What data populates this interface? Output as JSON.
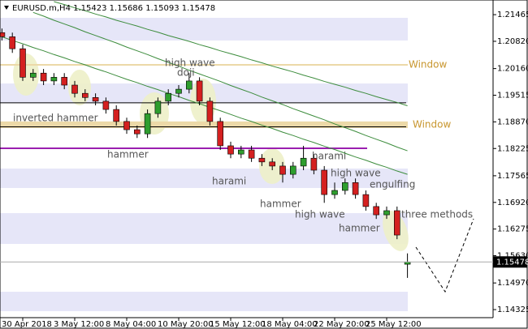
{
  "chart_data": {
    "type": "candlestick",
    "symbol": "EURUSD.m,H4",
    "categories": [
      null,
      null,
      "30 Apr 2018",
      null,
      null,
      null,
      null,
      "3 May 12:00",
      null,
      null,
      null,
      null,
      "8 May 04:00",
      null,
      null,
      null,
      null,
      "10 May 20:00",
      null,
      null,
      null,
      null,
      "15 May 12:00",
      null,
      null,
      null,
      null,
      "18 May 04:00",
      null,
      null,
      null,
      null,
      "22 May 20:00",
      null,
      null,
      null,
      null,
      "25 May 12:00",
      null,
      null
    ],
    "open": [
      1.2103,
      1.2093,
      1.2064,
      1.1995,
      1.2005,
      1.1986,
      1.1995,
      1.1976,
      1.1956,
      1.1946,
      1.1937,
      1.1917,
      1.1888,
      1.1868,
      1.1858,
      1.1907,
      1.1937,
      1.1956,
      1.1966,
      1.1986,
      1.1937,
      1.1888,
      1.1829,
      1.1809,
      1.1819,
      1.1799,
      1.179,
      1.178,
      1.176,
      1.178,
      1.1799,
      1.177,
      1.1711,
      1.1721,
      1.174,
      1.1711,
      1.1682,
      1.1662,
      1.1672,
      1.15423
    ],
    "high": [
      1.2113,
      1.2103,
      1.2074,
      1.2015,
      1.2015,
      1.2005,
      1.2005,
      1.1986,
      1.1966,
      1.1956,
      1.1946,
      1.1927,
      1.1897,
      1.1878,
      1.1917,
      1.1946,
      1.1966,
      1.1976,
      1.2005,
      1.1995,
      1.1946,
      1.1897,
      1.1839,
      1.1829,
      1.1829,
      1.1809,
      1.1799,
      1.179,
      1.179,
      1.1829,
      1.1809,
      1.178,
      1.174,
      1.175,
      1.175,
      1.1721,
      1.1691,
      1.1682,
      1.1682,
      1.15686
    ],
    "low": [
      1.2084,
      1.2054,
      1.1986,
      1.1986,
      1.1976,
      1.1976,
      1.1966,
      1.1946,
      1.1937,
      1.1927,
      1.1907,
      1.1878,
      1.1858,
      1.1848,
      1.1848,
      1.1897,
      1.1927,
      1.1946,
      1.1956,
      1.1927,
      1.1878,
      1.1819,
      1.1799,
      1.1799,
      1.179,
      1.178,
      1.177,
      1.174,
      1.175,
      1.177,
      1.176,
      1.1691,
      1.1701,
      1.1711,
      1.1701,
      1.1672,
      1.1652,
      1.1652,
      1.1603,
      1.15093
    ],
    "close": [
      1.2093,
      1.2064,
      1.1995,
      1.2005,
      1.1986,
      1.1995,
      1.1976,
      1.1956,
      1.1946,
      1.1937,
      1.1917,
      1.1888,
      1.1868,
      1.1858,
      1.1907,
      1.1937,
      1.1956,
      1.1966,
      1.1986,
      1.1937,
      1.1888,
      1.1829,
      1.1809,
      1.1819,
      1.1799,
      1.179,
      1.178,
      1.176,
      1.178,
      1.1799,
      1.177,
      1.1711,
      1.1721,
      1.174,
      1.1711,
      1.1682,
      1.1662,
      1.1672,
      1.1613,
      1.15478
    ],
    "up_color": "#2e9e2e",
    "down_color": "#d42020",
    "ma": [
      {
        "color": "#3c8c3c",
        "values": [
          null,
          null,
          null,
          null,
          null,
          1.2178,
          1.2171,
          1.2163,
          1.2156,
          1.2148,
          1.2141,
          1.2133,
          1.2126,
          1.2119,
          1.2111,
          1.2104,
          1.2096,
          1.2089,
          1.2082,
          1.2074,
          1.2067,
          1.2059,
          1.2052,
          1.2045,
          1.2037,
          1.203,
          1.2022,
          1.2015,
          1.2008,
          1.2,
          1.1993,
          1.1985,
          1.1978,
          1.1971,
          1.1963,
          1.1956,
          1.1948,
          1.1941,
          1.1934,
          1.1926
        ]
      },
      {
        "color": "#3c8c3c",
        "values": [
          null,
          null,
          null,
          1.2152,
          1.2143,
          1.2133,
          1.2124,
          1.2115,
          1.2105,
          1.2096,
          1.2087,
          1.2078,
          1.2068,
          1.2059,
          1.205,
          1.204,
          1.2031,
          1.2022,
          1.2012,
          1.2003,
          1.1994,
          1.1985,
          1.1975,
          1.1966,
          1.1957,
          1.1947,
          1.1938,
          1.1929,
          1.1919,
          1.191,
          1.1901,
          1.1892,
          1.1882,
          1.1873,
          1.1864,
          1.1854,
          1.1845,
          1.1836,
          1.1826,
          1.1817
        ]
      },
      {
        "color": "#3c8c3c",
        "values": [
          1.2093,
          1.2084,
          1.2076,
          1.2067,
          1.2059,
          1.205,
          1.2042,
          1.2033,
          1.2025,
          1.2016,
          1.2008,
          1.1999,
          1.199,
          1.1982,
          1.1973,
          1.1965,
          1.1956,
          1.1948,
          1.1939,
          1.1931,
          1.1922,
          1.1914,
          1.1905,
          1.1896,
          1.1888,
          1.1879,
          1.1871,
          1.1862,
          1.1854,
          1.1845,
          1.1837,
          1.1828,
          1.182,
          1.1811,
          1.1802,
          1.1794,
          1.1785,
          1.1777,
          1.1768,
          1.176
        ]
      }
    ],
    "levels": [
      {
        "value": 1.1933,
        "color": "#000000"
      },
      {
        "value": 1.1875,
        "color": "#000000"
      },
      {
        "value": 1.1823,
        "color": "#9a1fb0"
      }
    ],
    "zones": [
      {
        "from": 1.2023,
        "to": 1.2027,
        "label": "Window"
      },
      {
        "from": 1.1872,
        "to": 1.1888,
        "label": "Window"
      }
    ],
    "zone_color": "#ecd9a8",
    "annotations": [
      "high wave",
      "doji",
      "inverted hammer",
      "hammer",
      "harami",
      "hammer",
      "harami",
      "high wave",
      "engulfing",
      "high wave",
      "hammer",
      "three methods"
    ],
    "ylim": [
      1.1413,
      1.2182
    ],
    "yticks": [
      1.21465,
      {
        "value": 1.2082,
        "label": "1.20820"
      },
      {
        "value": 1.2016,
        "label": "1.20160"
      },
      1.19515,
      {
        "value": 1.1887,
        "label": "1.18870"
      },
      1.18225,
      1.17565,
      {
        "value": 1.1692,
        "label": "1.16920"
      },
      1.16275,
      {
        "value": 1.1563,
        "label": "1.15630"
      },
      {
        "value": 1.1497,
        "label": "1.14970"
      },
      1.14325
    ]
  }
}
